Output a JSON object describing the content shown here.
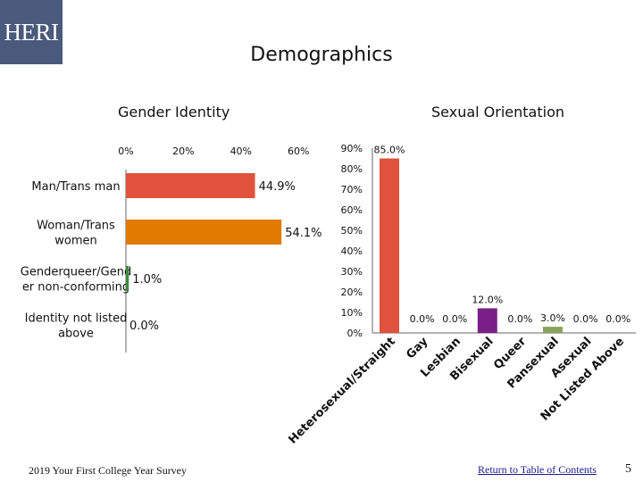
{
  "header": {
    "logo_text": "HERI",
    "title": "Demographics"
  },
  "footer": {
    "survey": "2019 Your First College Year Survey",
    "toc_link": "Return to Table of Contents",
    "page_number": "5"
  },
  "colors": {
    "logo_bg": "#4a5a7c",
    "red": "#e0523c",
    "orange": "#e07a00",
    "green": "#3f8a3f",
    "purple": "#7a1f8a",
    "olive": "#8aa35a"
  },
  "chart_data": [
    {
      "type": "bar",
      "orientation": "horizontal",
      "title": "Gender Identity",
      "categories": [
        "Man/Trans man",
        "Woman/Trans women",
        "Genderqueer/Gender non-conforming",
        "Identity not listed above"
      ],
      "category_lines": [
        [
          "Man/Trans man"
        ],
        [
          "Woman/Trans",
          "women"
        ],
        [
          "Genderqueer/Gend",
          "er non-conforming"
        ],
        [
          "Identity not listed",
          "above"
        ]
      ],
      "values": [
        44.9,
        54.1,
        1.0,
        0.0
      ],
      "value_labels": [
        "44.9%",
        "54.1%",
        "1.0%",
        "0.0%"
      ],
      "colors": [
        "#e0523c",
        "#e07a00",
        "#3f8a3f",
        "#7a1f8a"
      ],
      "xlim": [
        0,
        60
      ],
      "ticks": [
        0,
        20,
        40,
        60
      ],
      "tick_labels": [
        "0%",
        "20%",
        "40%",
        "60%"
      ]
    },
    {
      "type": "bar",
      "orientation": "vertical",
      "title": "Sexual Orientation",
      "categories": [
        "Heterosexual/Straight",
        "Gay",
        "Lesbian",
        "Bisexual",
        "Queer",
        "Pansexual",
        "Asexual",
        "Not Listed Above"
      ],
      "values": [
        85.0,
        0.0,
        0.0,
        12.0,
        0.0,
        3.0,
        0.0,
        0.0
      ],
      "value_labels": [
        "85.0%",
        "0.0%",
        "0.0%",
        "12.0%",
        "0.0%",
        "3.0%",
        "0.0%",
        "0.0%"
      ],
      "colors": [
        "#e0523c",
        "#e07a00",
        "#3f8a3f",
        "#7a1f8a",
        "#4a5a7c",
        "#8aa35a",
        "#e07a00",
        "#3f8a3f"
      ],
      "ylim": [
        0,
        90
      ],
      "ticks": [
        0,
        10,
        20,
        30,
        40,
        50,
        60,
        70,
        80,
        90
      ],
      "tick_labels": [
        "0%",
        "10%",
        "20%",
        "30%",
        "40%",
        "50%",
        "60%",
        "70%",
        "80%",
        "90%"
      ]
    }
  ]
}
